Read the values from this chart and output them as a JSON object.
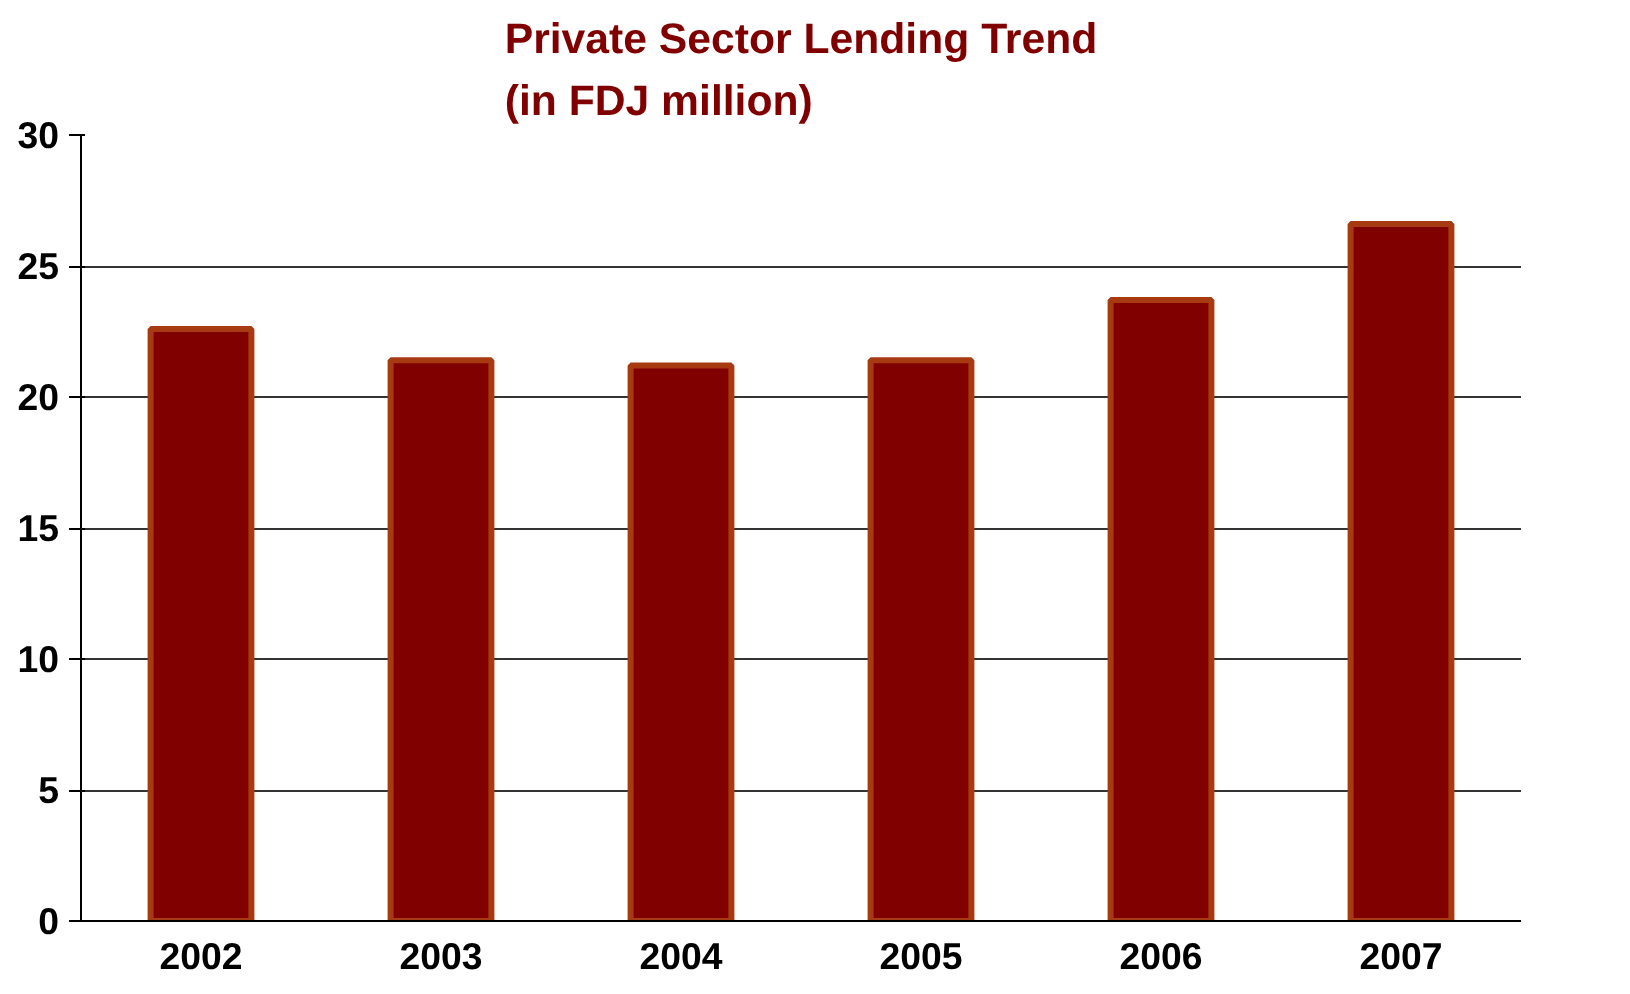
{
  "chart_data": {
    "type": "bar",
    "title": "Private Sector Lending Trend\n(in FDJ million)",
    "categories": [
      "2002",
      "2003",
      "2004",
      "2005",
      "2006",
      "2007"
    ],
    "values": [
      22.6,
      21.4,
      21.2,
      21.4,
      23.7,
      26.6
    ],
    "color": "#800000",
    "ylim": [
      0,
      30
    ],
    "yticks": [
      0,
      5,
      10,
      15,
      20,
      25,
      30
    ],
    "grid": "y"
  }
}
